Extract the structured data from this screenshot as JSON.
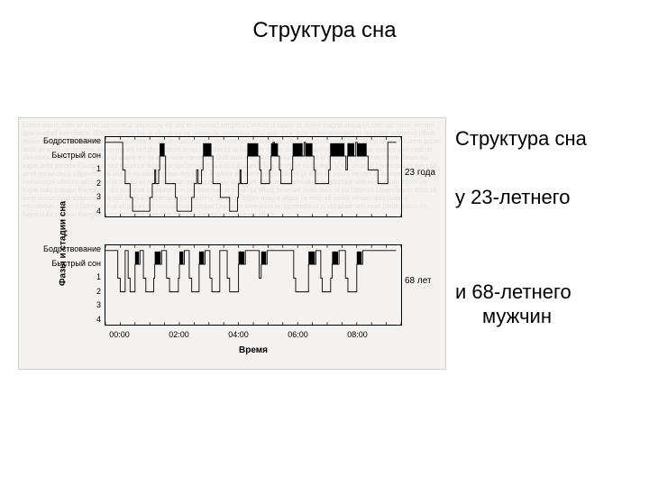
{
  "title": "Структура сна",
  "side_text": {
    "line1": "Структура сна",
    "line2": "у 23-летнего",
    "line3": "и 68-летнего",
    "line4": "мужчин"
  },
  "figure": {
    "background_color": "#f3f2f0",
    "border_color": "#d0cfce",
    "line_color": "#000000",
    "rem_fill_color": "#000000",
    "yaxis_label": "Фазы и стадии сна",
    "xaxis_label": "Время",
    "yaxis_fontsize": 10,
    "xaxis_fontsize": 10,
    "tick_fontsize": 9,
    "y_levels": [
      "Бодрствование",
      "Быстрый сон",
      "1",
      "2",
      "3",
      "4"
    ],
    "x_ticks": [
      "00:00",
      "02:00",
      "04:00",
      "06:00",
      "08:00"
    ],
    "x_range_minutes": [
      -30,
      570
    ],
    "panels": [
      {
        "label": "23 года",
        "stages": [
          {
            "t": -30,
            "s": 0
          },
          {
            "t": 0,
            "s": 0
          },
          {
            "t": 5,
            "s": 2
          },
          {
            "t": 10,
            "s": 3
          },
          {
            "t": 20,
            "s": 4
          },
          {
            "t": 25,
            "s": 5
          },
          {
            "t": 55,
            "s": 5
          },
          {
            "t": 60,
            "s": 4
          },
          {
            "t": 65,
            "s": 3
          },
          {
            "t": 70,
            "s": 2
          },
          {
            "t": 72,
            "s": 3
          },
          {
            "t": 78,
            "s": 2
          },
          {
            "t": 80,
            "s": 1
          },
          {
            "t": 90,
            "s": 1
          },
          {
            "t": 92,
            "s": 3
          },
          {
            "t": 110,
            "s": 3
          },
          {
            "t": 112,
            "s": 4
          },
          {
            "t": 115,
            "s": 5
          },
          {
            "t": 140,
            "s": 5
          },
          {
            "t": 145,
            "s": 4
          },
          {
            "t": 150,
            "s": 3
          },
          {
            "t": 155,
            "s": 2
          },
          {
            "t": 158,
            "s": 3
          },
          {
            "t": 165,
            "s": 2
          },
          {
            "t": 168,
            "s": 1
          },
          {
            "t": 185,
            "s": 1
          },
          {
            "t": 188,
            "s": 3
          },
          {
            "t": 200,
            "s": 3
          },
          {
            "t": 203,
            "s": 4
          },
          {
            "t": 220,
            "s": 4
          },
          {
            "t": 222,
            "s": 5
          },
          {
            "t": 235,
            "s": 5
          },
          {
            "t": 238,
            "s": 4
          },
          {
            "t": 240,
            "s": 3
          },
          {
            "t": 243,
            "s": 2
          },
          {
            "t": 245,
            "s": 3
          },
          {
            "t": 255,
            "s": 3
          },
          {
            "t": 258,
            "s": 1
          },
          {
            "t": 280,
            "s": 1
          },
          {
            "t": 283,
            "s": 2
          },
          {
            "t": 286,
            "s": 3
          },
          {
            "t": 300,
            "s": 3
          },
          {
            "t": 303,
            "s": 2
          },
          {
            "t": 306,
            "s": 1
          },
          {
            "t": 310,
            "s": 0
          },
          {
            "t": 313,
            "s": 1
          },
          {
            "t": 320,
            "s": 1
          },
          {
            "t": 323,
            "s": 2
          },
          {
            "t": 326,
            "s": 3
          },
          {
            "t": 345,
            "s": 3
          },
          {
            "t": 348,
            "s": 2
          },
          {
            "t": 350,
            "s": 1
          },
          {
            "t": 370,
            "s": 1
          },
          {
            "t": 373,
            "s": 0
          },
          {
            "t": 376,
            "s": 1
          },
          {
            "t": 390,
            "s": 1
          },
          {
            "t": 393,
            "s": 2
          },
          {
            "t": 396,
            "s": 3
          },
          {
            "t": 420,
            "s": 3
          },
          {
            "t": 423,
            "s": 2
          },
          {
            "t": 426,
            "s": 1
          },
          {
            "t": 455,
            "s": 1
          },
          {
            "t": 458,
            "s": 2
          },
          {
            "t": 461,
            "s": 1
          },
          {
            "t": 475,
            "s": 1
          },
          {
            "t": 478,
            "s": 0
          },
          {
            "t": 481,
            "s": 1
          },
          {
            "t": 500,
            "s": 1
          },
          {
            "t": 503,
            "s": 2
          },
          {
            "t": 520,
            "s": 2
          },
          {
            "t": 523,
            "s": 3
          },
          {
            "t": 540,
            "s": 3
          },
          {
            "t": 543,
            "s": 0
          },
          {
            "t": 560,
            "s": 0
          }
        ],
        "rem_fills": [
          {
            "t0": 80,
            "t1": 90
          },
          {
            "t0": 168,
            "t1": 185
          },
          {
            "t0": 258,
            "t1": 280
          },
          {
            "t0": 306,
            "t1": 320
          },
          {
            "t0": 350,
            "t1": 370
          },
          {
            "t0": 376,
            "t1": 390
          },
          {
            "t0": 426,
            "t1": 455
          },
          {
            "t0": 461,
            "t1": 475
          },
          {
            "t0": 481,
            "t1": 500
          }
        ]
      },
      {
        "label": "68 лет",
        "stages": [
          {
            "t": -30,
            "s": 0
          },
          {
            "t": -10,
            "s": 0
          },
          {
            "t": -5,
            "s": 2
          },
          {
            "t": 0,
            "s": 3
          },
          {
            "t": 8,
            "s": 3
          },
          {
            "t": 10,
            "s": 0
          },
          {
            "t": 14,
            "s": 0
          },
          {
            "t": 16,
            "s": 2
          },
          {
            "t": 20,
            "s": 3
          },
          {
            "t": 28,
            "s": 3
          },
          {
            "t": 30,
            "s": 1
          },
          {
            "t": 38,
            "s": 1
          },
          {
            "t": 40,
            "s": 0
          },
          {
            "t": 45,
            "s": 0
          },
          {
            "t": 47,
            "s": 2
          },
          {
            "t": 52,
            "s": 3
          },
          {
            "t": 65,
            "s": 3
          },
          {
            "t": 68,
            "s": 2
          },
          {
            "t": 70,
            "s": 1
          },
          {
            "t": 82,
            "s": 1
          },
          {
            "t": 84,
            "s": 0
          },
          {
            "t": 92,
            "s": 0
          },
          {
            "t": 94,
            "s": 2
          },
          {
            "t": 100,
            "s": 3
          },
          {
            "t": 115,
            "s": 3
          },
          {
            "t": 118,
            "s": 2
          },
          {
            "t": 120,
            "s": 1
          },
          {
            "t": 128,
            "s": 1
          },
          {
            "t": 130,
            "s": 0
          },
          {
            "t": 138,
            "s": 0
          },
          {
            "t": 140,
            "s": 2
          },
          {
            "t": 145,
            "s": 3
          },
          {
            "t": 158,
            "s": 3
          },
          {
            "t": 160,
            "s": 1
          },
          {
            "t": 170,
            "s": 1
          },
          {
            "t": 172,
            "s": 0
          },
          {
            "t": 180,
            "s": 0
          },
          {
            "t": 182,
            "s": 2
          },
          {
            "t": 186,
            "s": 3
          },
          {
            "t": 200,
            "s": 3
          },
          {
            "t": 202,
            "s": 0
          },
          {
            "t": 215,
            "s": 0
          },
          {
            "t": 217,
            "s": 2
          },
          {
            "t": 222,
            "s": 3
          },
          {
            "t": 238,
            "s": 3
          },
          {
            "t": 240,
            "s": 1
          },
          {
            "t": 252,
            "s": 1
          },
          {
            "t": 254,
            "s": 0
          },
          {
            "t": 260,
            "s": 0
          },
          {
            "t": 280,
            "s": 0
          },
          {
            "t": 282,
            "s": 2
          },
          {
            "t": 286,
            "s": 1
          },
          {
            "t": 296,
            "s": 1
          },
          {
            "t": 298,
            "s": 0
          },
          {
            "t": 350,
            "s": 0
          },
          {
            "t": 352,
            "s": 2
          },
          {
            "t": 356,
            "s": 3
          },
          {
            "t": 380,
            "s": 3
          },
          {
            "t": 382,
            "s": 1
          },
          {
            "t": 395,
            "s": 1
          },
          {
            "t": 397,
            "s": 0
          },
          {
            "t": 405,
            "s": 0
          },
          {
            "t": 407,
            "s": 2
          },
          {
            "t": 410,
            "s": 3
          },
          {
            "t": 425,
            "s": 3
          },
          {
            "t": 427,
            "s": 2
          },
          {
            "t": 430,
            "s": 1
          },
          {
            "t": 442,
            "s": 1
          },
          {
            "t": 444,
            "s": 0
          },
          {
            "t": 455,
            "s": 0
          },
          {
            "t": 457,
            "s": 2
          },
          {
            "t": 462,
            "s": 3
          },
          {
            "t": 478,
            "s": 3
          },
          {
            "t": 480,
            "s": 1
          },
          {
            "t": 490,
            "s": 1
          },
          {
            "t": 492,
            "s": 0
          },
          {
            "t": 560,
            "s": 0
          }
        ],
        "rem_fills": [
          {
            "t0": 30,
            "t1": 38
          },
          {
            "t0": 70,
            "t1": 82
          },
          {
            "t0": 120,
            "t1": 128
          },
          {
            "t0": 160,
            "t1": 170
          },
          {
            "t0": 240,
            "t1": 252
          },
          {
            "t0": 286,
            "t1": 296
          },
          {
            "t0": 382,
            "t1": 395
          },
          {
            "t0": 430,
            "t1": 442
          },
          {
            "t0": 480,
            "t1": 490
          }
        ]
      }
    ]
  }
}
